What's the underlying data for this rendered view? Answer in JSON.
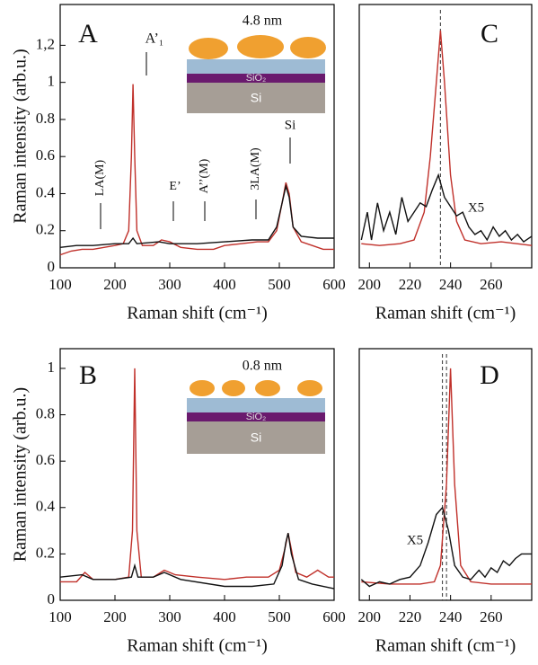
{
  "chart_data": [
    {
      "type": "line",
      "y_label": "Raman intensity (arb.u.)",
      "x_label": "Raman shift (cm⁻¹)",
      "xlim": [
        100,
        600
      ],
      "xticks": [
        100,
        200,
        300,
        400,
        500,
        600
      ],
      "ylim": [
        0,
        1.42
      ],
      "yticks": [
        0,
        0.2,
        0.4,
        0.6,
        0.8,
        1,
        {
          "value": 1.2,
          "label": "1,2"
        }
      ],
      "inset": [
        "SiO₂",
        "Si"
      ],
      "annotations": [
        "A",
        "4.8 nm",
        "A’₁",
        "LA(M)",
        "E’",
        "A’’(M)",
        "3LA(M)",
        "Si"
      ],
      "series": [
        {
          "color": "#c0302a",
          "x": [
            100,
            120,
            140,
            160,
            180,
            200,
            215,
            225,
            230,
            233,
            236,
            240,
            250,
            270,
            285,
            300,
            320,
            350,
            380,
            400,
            430,
            460,
            480,
            495,
            505,
            512,
            518,
            525,
            540,
            560,
            580,
            600
          ],
          "values": [
            0.07,
            0.09,
            0.1,
            0.1,
            0.11,
            0.12,
            0.13,
            0.2,
            0.6,
            0.99,
            0.6,
            0.2,
            0.12,
            0.12,
            0.15,
            0.14,
            0.11,
            0.1,
            0.1,
            0.12,
            0.13,
            0.14,
            0.14,
            0.2,
            0.35,
            0.46,
            0.4,
            0.22,
            0.14,
            0.12,
            0.1,
            0.1
          ]
        },
        {
          "color": "#111111",
          "x": [
            100,
            130,
            160,
            200,
            225,
            233,
            240,
            280,
            300,
            350,
            400,
            450,
            480,
            495,
            505,
            512,
            518,
            525,
            540,
            570,
            600
          ],
          "values": [
            0.11,
            0.12,
            0.12,
            0.13,
            0.13,
            0.16,
            0.13,
            0.14,
            0.13,
            0.13,
            0.14,
            0.15,
            0.15,
            0.22,
            0.35,
            0.44,
            0.38,
            0.22,
            0.17,
            0.16,
            0.16
          ]
        }
      ]
    },
    {
      "type": "line",
      "x_label": "Raman shift (cm⁻¹)",
      "xlim": [
        195,
        280
      ],
      "xticks": [
        200,
        220,
        240,
        260
      ],
      "ylim": [
        0,
        1.42
      ],
      "vlines": [
        235
      ],
      "annotations": [
        "C",
        "X5"
      ],
      "series": [
        {
          "color": "#c0302a",
          "x": [
            196,
            205,
            215,
            222,
            227,
            230,
            233,
            235,
            237,
            240,
            243,
            247,
            255,
            265,
            280
          ],
          "values": [
            0.13,
            0.12,
            0.13,
            0.15,
            0.3,
            0.6,
            1.0,
            1.28,
            1.0,
            0.5,
            0.25,
            0.15,
            0.13,
            0.14,
            0.12
          ]
        },
        {
          "color": "#111111",
          "x": [
            196,
            199,
            201,
            204,
            207,
            210,
            213,
            216,
            219,
            222,
            225,
            228,
            231,
            234,
            237,
            240,
            243,
            246,
            249,
            252,
            255,
            258,
            261,
            264,
            267,
            270,
            273,
            276,
            280
          ],
          "values": [
            0.15,
            0.3,
            0.15,
            0.35,
            0.2,
            0.3,
            0.18,
            0.38,
            0.25,
            0.3,
            0.35,
            0.33,
            0.42,
            0.5,
            0.38,
            0.33,
            0.28,
            0.3,
            0.22,
            0.18,
            0.2,
            0.15,
            0.22,
            0.17,
            0.2,
            0.15,
            0.18,
            0.14,
            0.17
          ]
        }
      ]
    },
    {
      "type": "line",
      "y_label": "Raman intensity (arb.u.)",
      "x_label": "Raman shift (cm⁻¹)",
      "xlim": [
        100,
        600
      ],
      "xticks": [
        100,
        200,
        300,
        400,
        500,
        600
      ],
      "ylim": [
        0,
        1.085
      ],
      "yticks": [
        0,
        0.2,
        0.4,
        0.6,
        0.8,
        1
      ],
      "inset": [
        "SiO₂",
        "Si"
      ],
      "annotations": [
        "B",
        "0.8 nm"
      ],
      "series": [
        {
          "color": "#c0302a",
          "x": [
            100,
            130,
            145,
            160,
            200,
            225,
            232,
            236,
            240,
            248,
            270,
            290,
            310,
            350,
            400,
            440,
            480,
            500,
            510,
            516,
            522,
            530,
            550,
            570,
            590,
            600
          ],
          "values": [
            0.08,
            0.08,
            0.12,
            0.09,
            0.09,
            0.1,
            0.3,
            1.0,
            0.3,
            0.1,
            0.1,
            0.13,
            0.11,
            0.1,
            0.09,
            0.1,
            0.1,
            0.13,
            0.22,
            0.29,
            0.22,
            0.12,
            0.1,
            0.13,
            0.1,
            0.1
          ]
        },
        {
          "color": "#111111",
          "x": [
            100,
            140,
            160,
            200,
            230,
            236,
            242,
            270,
            290,
            320,
            400,
            450,
            490,
            505,
            512,
            516,
            522,
            535,
            560,
            600
          ],
          "values": [
            0.1,
            0.11,
            0.09,
            0.09,
            0.1,
            0.15,
            0.1,
            0.1,
            0.12,
            0.09,
            0.06,
            0.06,
            0.07,
            0.15,
            0.25,
            0.29,
            0.2,
            0.09,
            0.07,
            0.05
          ]
        }
      ]
    },
    {
      "type": "line",
      "x_label": "Raman shift (cm⁻¹)",
      "xlim": [
        195,
        280
      ],
      "xticks": [
        200,
        220,
        240,
        260
      ],
      "ylim": [
        0,
        1.085
      ],
      "vlines": [
        236,
        238
      ],
      "annotations": [
        "D",
        "X5"
      ],
      "series": [
        {
          "color": "#c0302a",
          "x": [
            196,
            210,
            225,
            232,
            235,
            238,
            240,
            242,
            245,
            250,
            260,
            280
          ],
          "values": [
            0.08,
            0.07,
            0.07,
            0.08,
            0.15,
            0.5,
            1.0,
            0.5,
            0.15,
            0.08,
            0.07,
            0.07
          ]
        },
        {
          "color": "#111111",
          "x": [
            196,
            200,
            205,
            210,
            215,
            220,
            225,
            229,
            233,
            236,
            239,
            242,
            246,
            250,
            254,
            257,
            260,
            263,
            266,
            269,
            272,
            275,
            280
          ],
          "values": [
            0.09,
            0.06,
            0.08,
            0.07,
            0.09,
            0.1,
            0.15,
            0.25,
            0.37,
            0.4,
            0.3,
            0.15,
            0.1,
            0.09,
            0.13,
            0.1,
            0.14,
            0.12,
            0.17,
            0.15,
            0.18,
            0.2,
            0.2
          ]
        }
      ]
    }
  ]
}
